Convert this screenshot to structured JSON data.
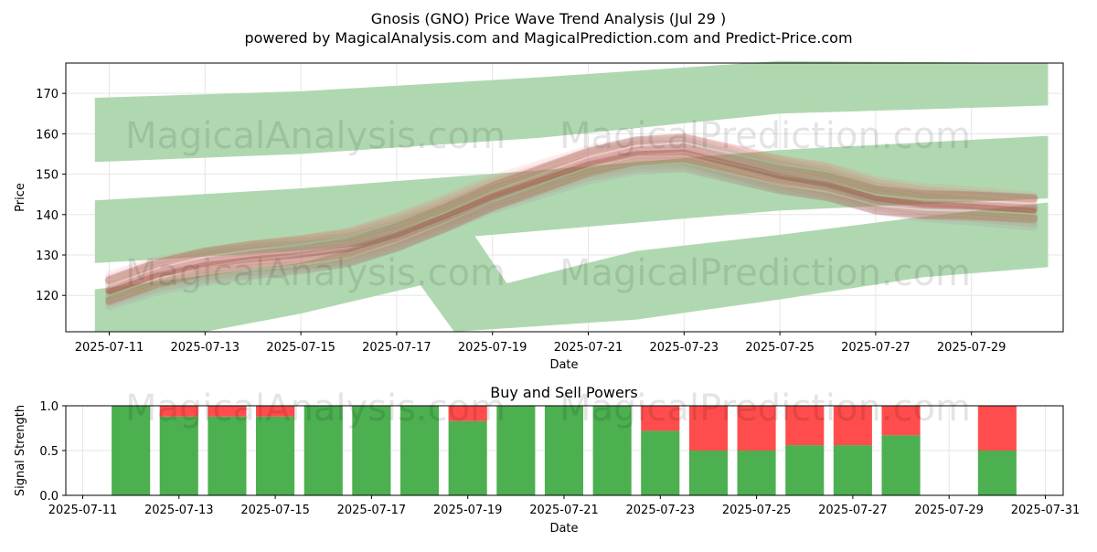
{
  "title": "Gnosis (GNO) Price Wave Trend Analysis (Jul 29 )",
  "subtitle": "powered by MagicalAnalysis.com and MagicalPrediction.com and Predict-Price.com",
  "watermarks": [
    "MagicalAnalysis.com",
    "MagicalPrediction.com",
    "MagicalAnalysis.com",
    "MagicalPrediction.com",
    "MagicalAnalysis.com",
    "MagicalPrediction.com"
  ],
  "colors": {
    "green": "#4caf50",
    "red": "#ff4d4d",
    "band": "#b0d8b0"
  },
  "chart_data": [
    {
      "type": "area",
      "title": "",
      "xlabel": "Date",
      "ylabel": "Price",
      "x_ticks": [
        "2025-07-11",
        "2025-07-13",
        "2025-07-15",
        "2025-07-17",
        "2025-07-19",
        "2025-07-21",
        "2025-07-23",
        "2025-07-25",
        "2025-07-27",
        "2025-07-29"
      ],
      "y_ticks": [
        120,
        130,
        140,
        150,
        160,
        170
      ],
      "ylim": [
        111,
        177.5
      ],
      "xlim": [
        "2025-07-10.3",
        "2025-07-31.3"
      ],
      "grid": true,
      "bands": [
        {
          "name": "upper",
          "upper": [
            [
              10.7,
              168.9
            ],
            [
              15,
              170.5
            ],
            [
              20,
              174
            ],
            [
              25,
              178
            ],
            [
              30.6,
              177.5
            ]
          ],
          "lower": [
            [
              10.7,
              153
            ],
            [
              15,
              155
            ],
            [
              20,
              159
            ],
            [
              25,
              165
            ],
            [
              30.6,
              167
            ]
          ]
        },
        {
          "name": "middle",
          "upper": [
            [
              10.7,
              143.5
            ],
            [
              15,
              146.5
            ],
            [
              20,
              151
            ],
            [
              25,
              156
            ],
            [
              30.6,
              159.5
            ]
          ],
          "lower": [
            [
              10.7,
              128
            ],
            [
              15,
              131
            ],
            [
              20,
              136
            ],
            [
              25,
              141
            ],
            [
              30.6,
              144
            ]
          ]
        },
        {
          "name": "lower",
          "upper": [
            [
              10.7,
              121.5
            ],
            [
              15,
              128
            ],
            [
              17.5,
              136
            ],
            [
              18,
              139.5
            ],
            [
              18.5,
              137
            ],
            [
              19.3,
              123
            ],
            [
              22,
              131
            ],
            [
              25,
              135
            ],
            [
              28,
              139.5
            ],
            [
              30.6,
              143
            ]
          ],
          "lower": [
            [
              10.7,
              111
            ],
            [
              13,
              111
            ],
            [
              15,
              115.5
            ],
            [
              17.5,
              122.5
            ],
            [
              18.2,
              111
            ],
            [
              22,
              114
            ],
            [
              25,
              119
            ],
            [
              28,
              124.5
            ],
            [
              30.6,
              127
            ]
          ]
        }
      ],
      "forecast_center": [
        [
          11,
          121
        ],
        [
          12,
          125
        ],
        [
          13,
          127.5
        ],
        [
          14,
          129
        ],
        [
          15,
          130
        ],
        [
          16,
          131.5
        ],
        [
          17,
          135
        ],
        [
          18,
          139.5
        ],
        [
          19,
          144.5
        ],
        [
          20,
          148.5
        ],
        [
          21,
          152.5
        ],
        [
          22,
          155
        ],
        [
          23,
          155.5
        ],
        [
          24,
          152.5
        ],
        [
          25,
          149.5
        ],
        [
          26,
          147.5
        ],
        [
          27,
          144
        ],
        [
          28,
          142.5
        ],
        [
          29,
          142
        ],
        [
          30.3,
          141
        ]
      ]
    },
    {
      "type": "bar",
      "title": "Buy and Sell Powers",
      "xlabel": "Date",
      "ylabel": "Signal Strength",
      "x_ticks": [
        "2025-07-11",
        "2025-07-13",
        "2025-07-15",
        "2025-07-17",
        "2025-07-19",
        "2025-07-21",
        "2025-07-23",
        "2025-07-25",
        "2025-07-27",
        "2025-07-29",
        "2025-07-31"
      ],
      "y_ticks": [
        "0.0",
        "0.5",
        "1.0"
      ],
      "ylim": [
        0,
        1
      ],
      "grid": true,
      "series": [
        {
          "name": "Buy",
          "values": [
            1.0,
            0.88,
            0.88,
            0.88,
            1.0,
            1.0,
            1.0,
            0.83,
            1.0,
            1.0,
            1.0,
            0.72,
            0.5,
            0.5,
            0.56,
            0.56,
            0.67,
            0.5
          ]
        },
        {
          "name": "Sell",
          "values": [
            0.0,
            0.12,
            0.12,
            0.12,
            0.0,
            0.0,
            0.0,
            0.17,
            0.0,
            0.0,
            0.0,
            0.28,
            0.5,
            0.5,
            0.44,
            0.44,
            0.33,
            0.5
          ]
        }
      ],
      "categories": [
        "2025-07-12",
        "2025-07-13",
        "2025-07-14",
        "2025-07-15",
        "2025-07-16",
        "2025-07-17",
        "2025-07-18",
        "2025-07-19",
        "2025-07-20",
        "2025-07-21",
        "2025-07-22",
        "2025-07-23",
        "2025-07-24",
        "2025-07-25",
        "2025-07-26",
        "2025-07-27",
        "2025-07-28",
        "2025-07-30"
      ]
    }
  ]
}
